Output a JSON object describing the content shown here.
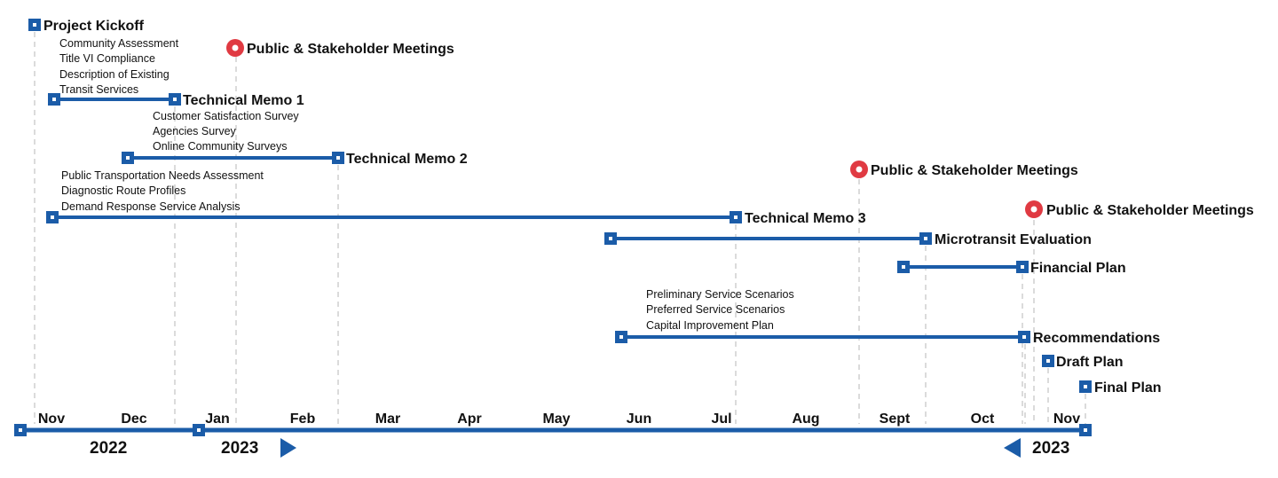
{
  "colors": {
    "primary_blue": "#1b5ca8",
    "meeting_red": "#e03a42",
    "guide_gray": "#cfcfcf",
    "text": "#111111"
  },
  "milestones": {
    "project_kickoff": "Project Kickoff",
    "meeting_1": "Public & Stakeholder Meetings",
    "technical_memo_1": "Technical Memo 1",
    "technical_memo_2": "Technical Memo 2",
    "meeting_2": "Public & Stakeholder Meetings",
    "technical_memo_3": "Technical Memo 3",
    "meeting_3": "Public & Stakeholder Meetings",
    "microtransit_evaluation": "Microtransit Evaluation",
    "financial_plan": "Financial Plan",
    "recommendations": "Recommendations",
    "draft_plan": "Draft Plan",
    "final_plan": "Final Plan"
  },
  "notes": {
    "memo1": [
      "Community Assessment",
      "Title VI Compliance",
      "Description of Existing",
      "Transit Services"
    ],
    "memo2": [
      "Customer Satisfaction Survey",
      "Agencies Survey",
      "Online Community Surveys"
    ],
    "memo3": [
      "Public Transportation Needs Assessment",
      "Diagnostic Route Profiles",
      "Demand Response Service Analysis"
    ],
    "recommendations": [
      "Preliminary Service Scenarios",
      "Preferred Service Scenarios",
      "Capital Improvement Plan"
    ]
  },
  "axis": {
    "months": [
      "Nov",
      "Dec",
      "Jan",
      "Feb",
      "Mar",
      "Apr",
      "May",
      "Jun",
      "Jul",
      "Aug",
      "Sept",
      "Oct",
      "Nov"
    ],
    "year_start": "2022",
    "year_mid": "2023",
    "year_end": "2023"
  }
}
